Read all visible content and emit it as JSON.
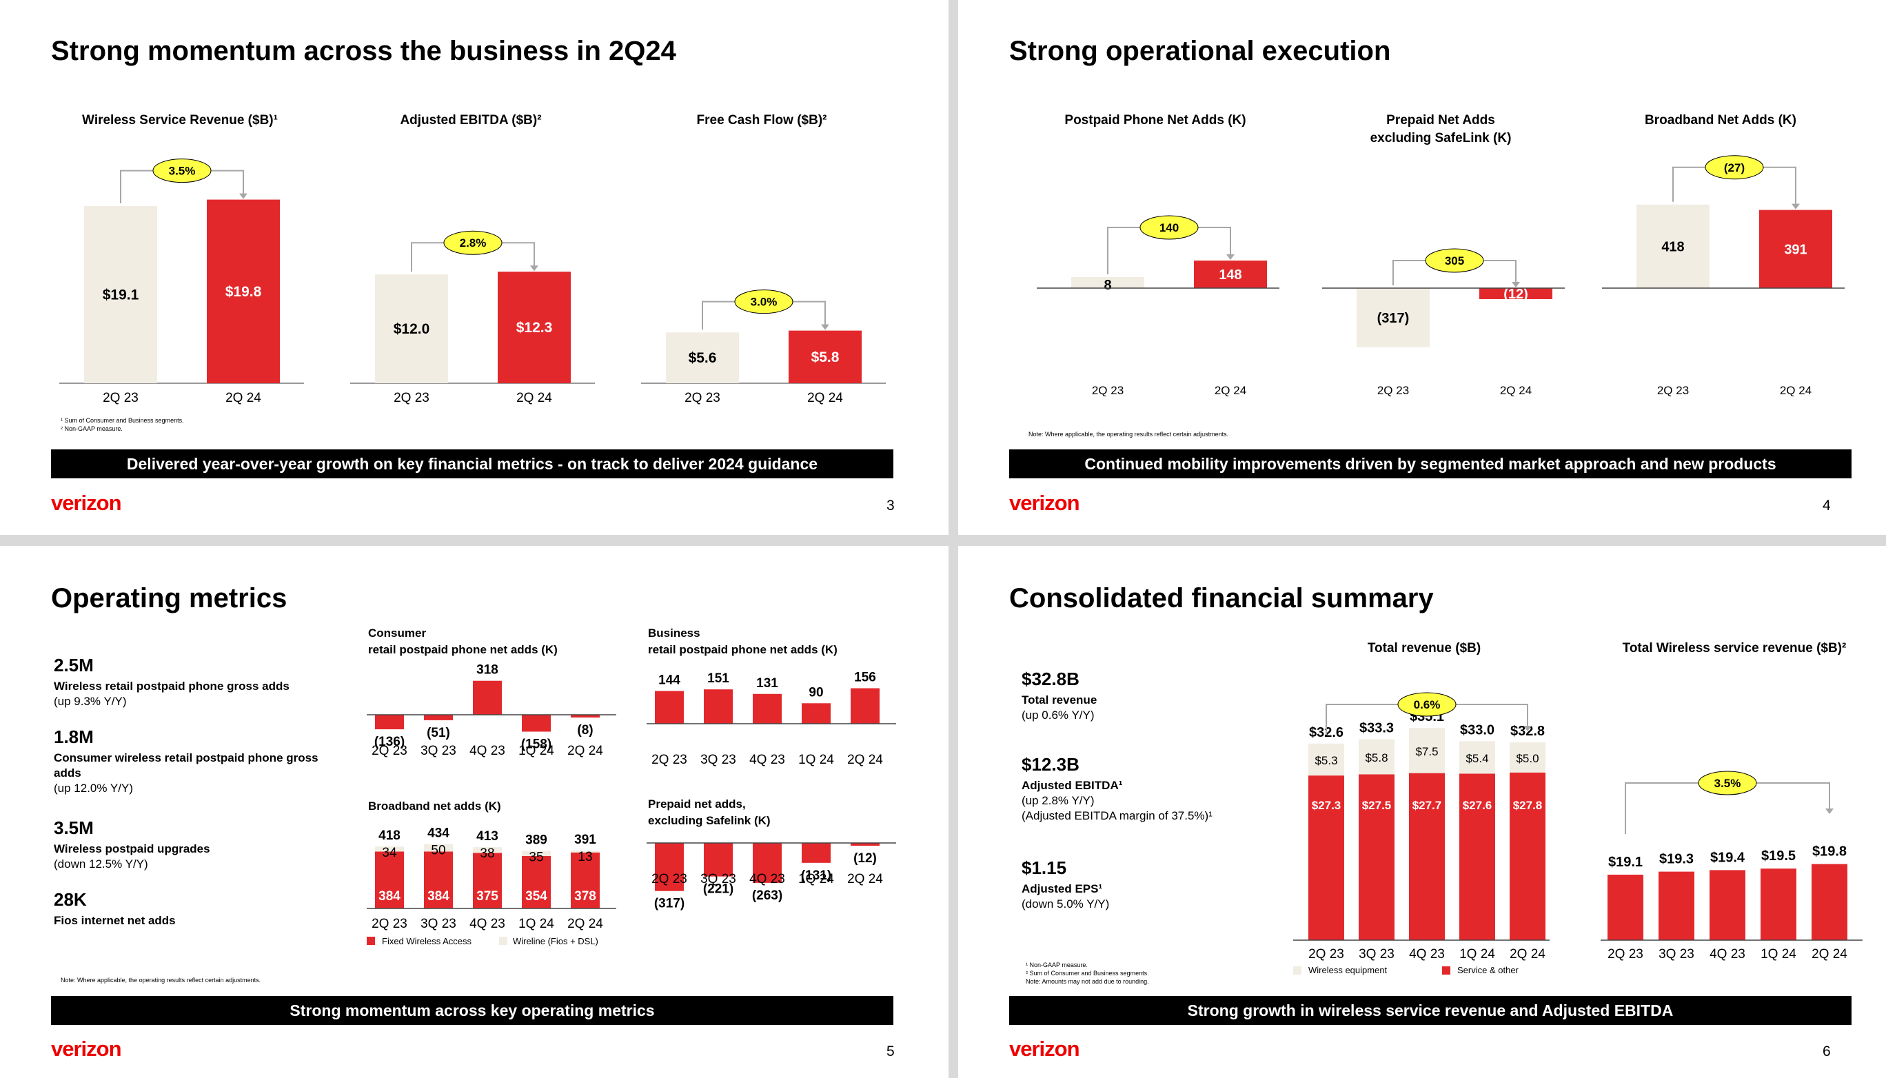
{
  "brand": {
    "logo": "verizon",
    "red": "#e3282c",
    "beige": "#f1ede3",
    "pill": "#ffff46"
  },
  "slide1": {
    "title": "Strong momentum across the business in 2Q24",
    "banner": "Delivered year-over-year growth on key financial metrics - on track to deliver 2024 guidance",
    "page": "3",
    "footnotes": [
      "¹ Sum of Consumer and Business segments.",
      "² Non-GAAP measure."
    ],
    "chart_data": [
      {
        "type": "bar",
        "title": "Wireless Service Revenue ($B)¹",
        "categories": [
          "2Q 23",
          "2Q 24"
        ],
        "values": [
          19.1,
          19.8
        ],
        "labels": [
          "$19.1",
          "$19.8"
        ],
        "growth": "3.5%"
      },
      {
        "type": "bar",
        "title": "Adjusted EBITDA ($B)²",
        "categories": [
          "2Q 23",
          "2Q 24"
        ],
        "values": [
          12.0,
          12.3
        ],
        "labels": [
          "$12.0",
          "$12.3"
        ],
        "growth": "2.8%"
      },
      {
        "type": "bar",
        "title": "Free Cash Flow ($B)²",
        "categories": [
          "2Q 23",
          "2Q 24"
        ],
        "values": [
          5.6,
          5.8
        ],
        "labels": [
          "$5.6",
          "$5.8"
        ],
        "growth": "3.0%"
      }
    ]
  },
  "slide2": {
    "title": "Strong operational execution",
    "banner": "Continued mobility improvements driven by segmented market approach and new products",
    "page": "4",
    "note": "Note:  Where applicable, the operating results reflect certain adjustments.",
    "chart_data": [
      {
        "type": "bar",
        "title": "Postpaid Phone Net Adds (K)",
        "categories": [
          "2Q 23",
          "2Q 24"
        ],
        "values": [
          8,
          148
        ],
        "labels": [
          "8",
          "148"
        ],
        "growth": "140"
      },
      {
        "type": "bar",
        "title": "Prepaid Net Adds excluding SafeLink (K)",
        "categories": [
          "2Q 23",
          "2Q 24"
        ],
        "values": [
          -317,
          -12
        ],
        "labels": [
          "(317)",
          "(12)"
        ],
        "growth": "305"
      },
      {
        "type": "bar",
        "title": "Broadband Net Adds (K)",
        "categories": [
          "2Q 23",
          "2Q 24"
        ],
        "values": [
          418,
          391
        ],
        "labels": [
          "418",
          "391"
        ],
        "growth": "(27)"
      }
    ]
  },
  "slide3": {
    "title": "Operating metrics",
    "banner": "Strong momentum across key operating metrics",
    "page": "5",
    "note": "Note:  Where applicable, the operating results reflect certain adjustments.",
    "kpis": [
      {
        "value": "2.5M",
        "label": "Wireless retail postpaid phone gross adds",
        "sub": "(up 9.3% Y/Y)"
      },
      {
        "value": "1.8M",
        "label": "Consumer wireless retail postpaid phone gross adds",
        "sub": "(up 12.0% Y/Y)"
      },
      {
        "value": "3.5M",
        "label": "Wireless postpaid upgrades",
        "sub": "(down 12.5% Y/Y)"
      },
      {
        "value": "28K",
        "label": "Fios internet net adds",
        "sub": ""
      }
    ],
    "legend": {
      "fwa": "Fixed Wireless Access",
      "wireline": "Wireline (Fios + DSL)"
    },
    "chart_data": [
      {
        "type": "bar",
        "title": "Consumer",
        "subtitle": "retail postpaid phone net adds (K)",
        "categories": [
          "2Q 23",
          "3Q 23",
          "4Q 23",
          "1Q 24",
          "2Q 24"
        ],
        "values": [
          -136,
          -51,
          318,
          -158,
          -8
        ],
        "labels": [
          "(136)",
          "(51)",
          "318",
          "(158)",
          "(8)"
        ]
      },
      {
        "type": "bar",
        "title": "Business",
        "subtitle": "retail postpaid phone net adds (K)",
        "categories": [
          "2Q 23",
          "3Q 23",
          "4Q 23",
          "1Q 24",
          "2Q 24"
        ],
        "values": [
          144,
          151,
          131,
          90,
          156
        ],
        "labels": [
          "144",
          "151",
          "131",
          "90",
          "156"
        ]
      },
      {
        "type": "bar",
        "title": "Broadband net adds (K)",
        "categories": [
          "2Q 23",
          "3Q 23",
          "4Q 23",
          "1Q 24",
          "2Q 24"
        ],
        "totals": [
          "418",
          "434",
          "413",
          "389",
          "391"
        ],
        "series": [
          {
            "name": "Fixed Wireless Access",
            "values": [
              384,
              384,
              375,
              354,
              378
            ]
          },
          {
            "name": "Wireline (Fios + DSL)",
            "values": [
              34,
              50,
              38,
              35,
              13
            ]
          }
        ]
      },
      {
        "type": "bar",
        "title": "Prepaid net adds,",
        "subtitle": "excluding Safelink (K)",
        "categories": [
          "2Q 23",
          "3Q 23",
          "4Q 23",
          "1Q 24",
          "2Q 24"
        ],
        "values": [
          -317,
          -221,
          -263,
          -131,
          -12
        ],
        "labels": [
          "(317)",
          "(221)",
          "(263)",
          "(131)",
          "(12)"
        ]
      }
    ]
  },
  "slide4": {
    "title": "Consolidated financial summary",
    "banner": "Strong growth in wireless service revenue and Adjusted EBITDA",
    "page": "6",
    "kpis": [
      {
        "value": "$32.8B",
        "lines": [
          "Total revenue",
          "(up 0.6% Y/Y)"
        ]
      },
      {
        "value": "$12.3B",
        "lines": [
          "Adjusted EBITDA¹",
          "(up 2.8% Y/Y)",
          "(Adjusted EBITDA margin of 37.5%)¹"
        ]
      },
      {
        "value": "$1.15",
        "lines": [
          "Adjusted EPS¹",
          "(down 5.0% Y/Y)"
        ]
      }
    ],
    "footnotes": [
      "¹ Non-GAAP measure.",
      "² Sum of Consumer and Business segments.",
      "Note: Amounts may not add due to rounding."
    ],
    "legend": {
      "equipment": "Wireless equipment",
      "service": "Service & other"
    },
    "chart_data": [
      {
        "type": "bar",
        "title": "Total revenue ($B)",
        "categories": [
          "2Q 23",
          "3Q 23",
          "4Q 23",
          "1Q 24",
          "2Q 24"
        ],
        "totals": [
          "$32.6",
          "$33.3",
          "$35.1",
          "$33.0",
          "$32.8"
        ],
        "growth": "0.6%",
        "series": [
          {
            "name": "Service & other",
            "values": [
              27.3,
              27.5,
              27.7,
              27.6,
              27.8
            ],
            "labels": [
              "$27.3",
              "$27.5",
              "$27.7",
              "$27.6",
              "$27.8"
            ]
          },
          {
            "name": "Wireless equipment",
            "values": [
              5.3,
              5.8,
              7.5,
              5.4,
              5.0
            ],
            "labels": [
              "$5.3",
              "$5.8",
              "$7.5",
              "$5.4",
              "$5.0"
            ]
          }
        ]
      },
      {
        "type": "bar",
        "title": "Total Wireless service revenue ($B)²",
        "categories": [
          "2Q 23",
          "3Q 23",
          "4Q 23",
          "1Q 24",
          "2Q 24"
        ],
        "values": [
          19.1,
          19.3,
          19.4,
          19.5,
          19.8
        ],
        "labels": [
          "$19.1",
          "$19.3",
          "$19.4",
          "$19.5",
          "$19.8"
        ],
        "growth": "3.5%"
      }
    ]
  }
}
